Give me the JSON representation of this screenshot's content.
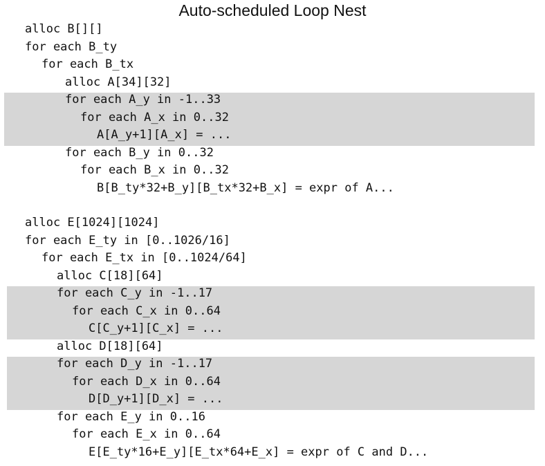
{
  "title": "Auto-scheduled Loop Nest",
  "blocks": [
    {
      "lines": [
        {
          "text": "alloc B[][]",
          "indent": 0
        },
        {
          "text": "for each B_ty",
          "indent": 0
        },
        {
          "text": "for each B_tx",
          "indent": 1
        },
        {
          "text": "alloc A[34][32]",
          "indent": 2
        },
        {
          "text": "for each A_y in -1..33",
          "indent": 2,
          "highlight": true
        },
        {
          "text": "for each A_x in 0..32",
          "indent": 3,
          "highlight": true
        },
        {
          "text": "A[A_y+1][A_x] = ...",
          "indent": 4,
          "highlight": true
        },
        {
          "text": "for each B_y in 0..32",
          "indent": 2
        },
        {
          "text": "for each B_x in 0..32",
          "indent": 3
        },
        {
          "text": "B[B_ty*32+B_y][B_tx*32+B_x] = expr of A...",
          "indent": 4
        }
      ]
    },
    {
      "lines": [
        {
          "text": "alloc E[1024][1024]",
          "indent": 0
        },
        {
          "text": "for each E_ty in [0..1026/16]",
          "indent": 0
        },
        {
          "text": "for each E_tx in [0..1024/64]",
          "indent": 1
        },
        {
          "text": "alloc C[18][64]",
          "indent": 2
        },
        {
          "text": "for each C_y in -1..17",
          "indent": 2,
          "highlight": true
        },
        {
          "text": "for each C_x in 0..64",
          "indent": 3,
          "highlight": true
        },
        {
          "text": "C[C_y+1][C_x] = ...",
          "indent": 4,
          "highlight": true
        },
        {
          "text": "alloc D[18][64]",
          "indent": 2
        },
        {
          "text": "for each D_y in -1..17",
          "indent": 2,
          "highlight": true
        },
        {
          "text": "for each D_x in 0..64",
          "indent": 3,
          "highlight": true
        },
        {
          "text": "D[D_y+1][D_x] = ...",
          "indent": 4,
          "highlight": true
        },
        {
          "text": "for each E_y in 0..16",
          "indent": 2
        },
        {
          "text": "for each E_x in 0..64",
          "indent": 3
        },
        {
          "text": "E[E_ty*16+E_y][E_tx*64+E_x] = expr of C and D...",
          "indent": 4
        }
      ]
    }
  ],
  "colors": {
    "highlight": "#d6d6d6",
    "text": "#111111",
    "background": "#ffffff"
  }
}
